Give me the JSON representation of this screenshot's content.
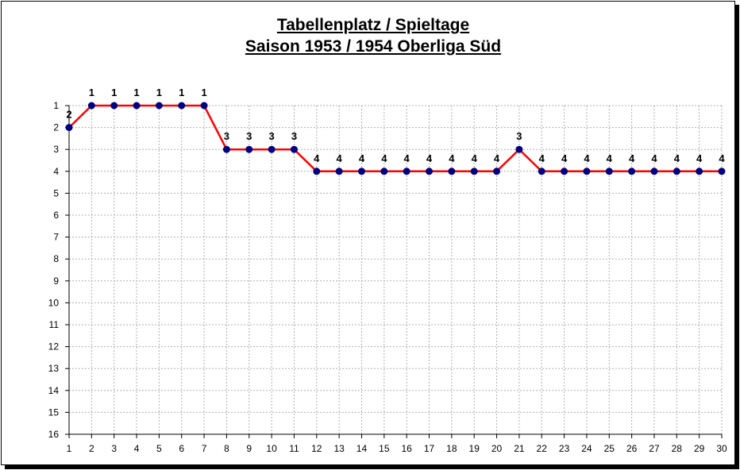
{
  "chart_data": {
    "type": "line",
    "title": "Tabellenplatz / Spieltage",
    "subtitle": "Saison 1953 / 1954 Oberliga Süd",
    "xlabel": "",
    "ylabel": "",
    "x": [
      1,
      2,
      3,
      4,
      5,
      6,
      7,
      8,
      9,
      10,
      11,
      12,
      13,
      14,
      15,
      16,
      17,
      18,
      19,
      20,
      21,
      22,
      23,
      24,
      25,
      26,
      27,
      28,
      29,
      30
    ],
    "series": [
      {
        "values": [
          2,
          1,
          1,
          1,
          1,
          1,
          1,
          3,
          3,
          3,
          3,
          4,
          4,
          4,
          4,
          4,
          4,
          4,
          4,
          4,
          3,
          4,
          4,
          4,
          4,
          4,
          4,
          4,
          4,
          4
        ]
      }
    ],
    "data_labels": [
      "2",
      "1",
      "1",
      "1",
      "1",
      "1",
      "1",
      "3",
      "3",
      "3",
      "3",
      "4",
      "4",
      "4",
      "4",
      "4",
      "4",
      "4",
      "4",
      "4",
      "3",
      "4",
      "4",
      "4",
      "4",
      "4",
      "4",
      "4",
      "4",
      "4"
    ],
    "xlim": [
      1,
      30
    ],
    "ylim": [
      1,
      16
    ],
    "y_inverted": true,
    "y_ticks": [
      1,
      2,
      3,
      4,
      5,
      6,
      7,
      8,
      9,
      10,
      11,
      12,
      13,
      14,
      15,
      16
    ],
    "x_ticks": [
      1,
      2,
      3,
      4,
      5,
      6,
      7,
      8,
      9,
      10,
      11,
      12,
      13,
      14,
      15,
      16,
      17,
      18,
      19,
      20,
      21,
      22,
      23,
      24,
      25,
      26,
      27,
      28,
      29,
      30
    ],
    "grid": true,
    "grid_style": "dotted",
    "legend": "none",
    "colors": {
      "line": "#ff0000",
      "marker": "#000080",
      "grid": "#b0b0b0",
      "axis": "#000000"
    }
  }
}
